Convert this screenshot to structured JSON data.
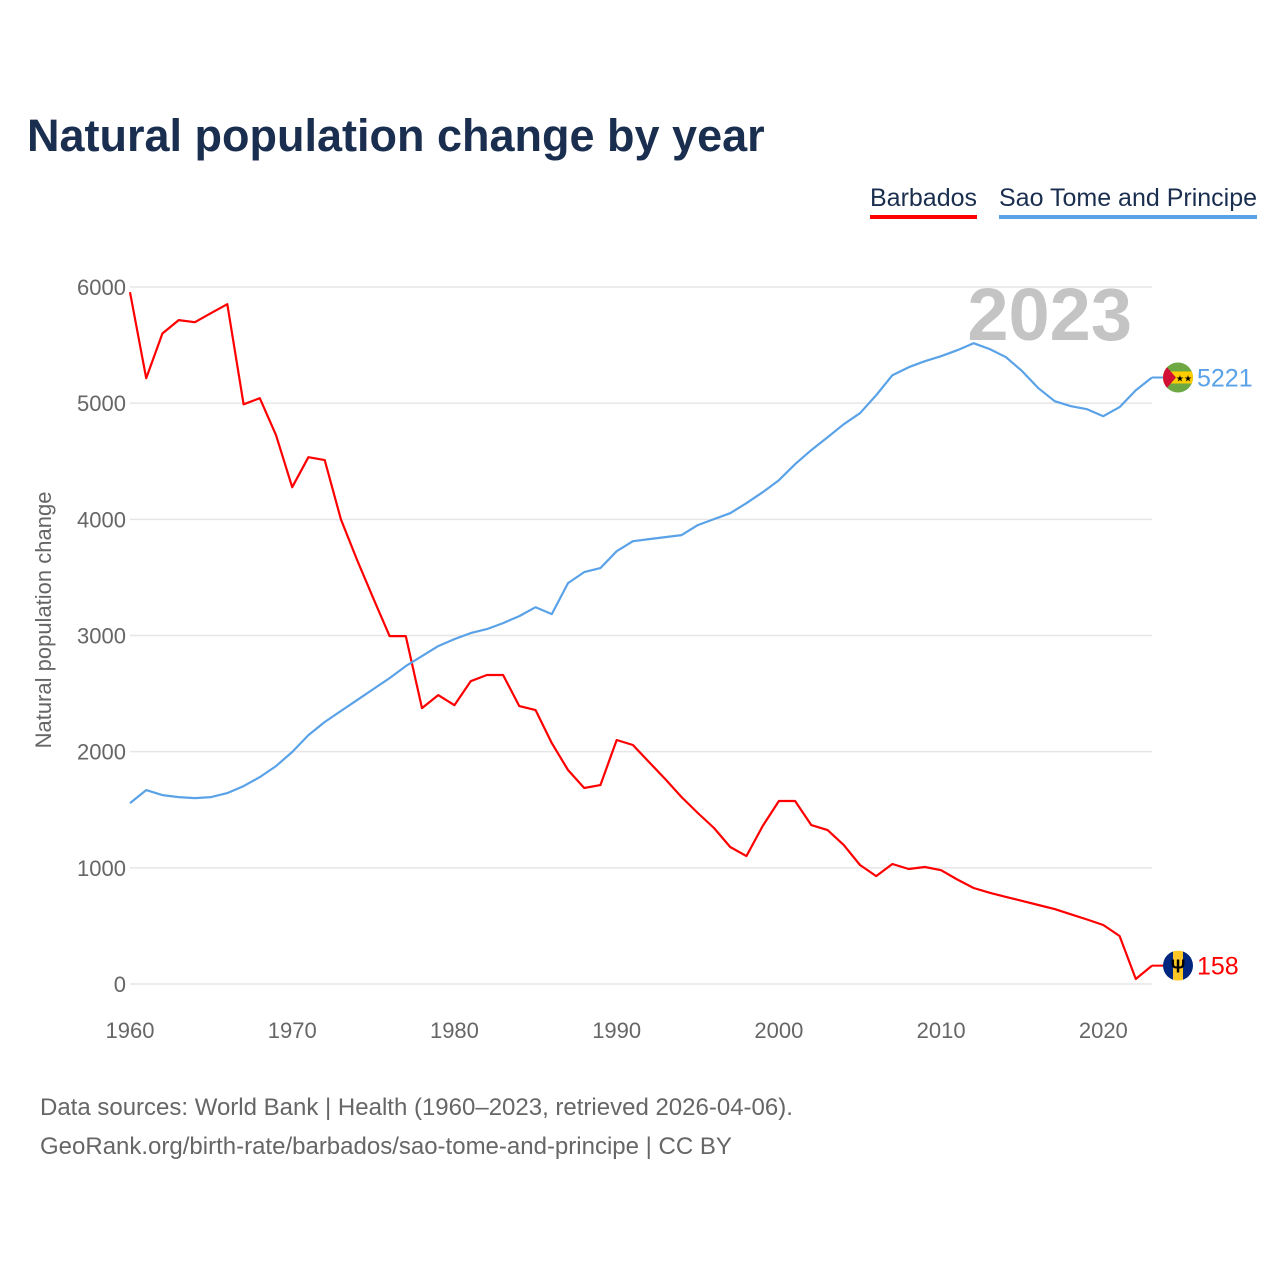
{
  "chart_data": {
    "type": "line",
    "title": "Natural population change by year",
    "ylabel": "Natural population change",
    "xlabel": "",
    "xlim": [
      1960,
      2023
    ],
    "ylim": [
      0,
      6000
    ],
    "yticks": [
      "0",
      "1000",
      "2000",
      "3000",
      "4000",
      "5000",
      "6000"
    ],
    "xticks": [
      "1960",
      "1970",
      "1980",
      "1990",
      "2000",
      "2010",
      "2020"
    ],
    "grid": true,
    "legend_position": "top-right",
    "highlight_year": "2023",
    "x": [
      1960,
      1961,
      1962,
      1963,
      1964,
      1965,
      1966,
      1967,
      1968,
      1969,
      1970,
      1971,
      1972,
      1973,
      1974,
      1975,
      1976,
      1977,
      1978,
      1979,
      1980,
      1981,
      1982,
      1983,
      1984,
      1985,
      1986,
      1987,
      1988,
      1989,
      1990,
      1991,
      1992,
      1993,
      1994,
      1995,
      1996,
      1997,
      1998,
      1999,
      2000,
      2001,
      2002,
      2003,
      2004,
      2005,
      2006,
      2007,
      2008,
      2009,
      2010,
      2011,
      2012,
      2013,
      2014,
      2015,
      2016,
      2017,
      2018,
      2019,
      2020,
      2021,
      2022,
      2023
    ],
    "series": [
      {
        "name": "Barbados",
        "color": "#ff0000",
        "end_label": "158",
        "flag": "barbados-flag",
        "values": [
          5955,
          5215,
          5600,
          5715,
          5697,
          5775,
          5852,
          4990,
          5043,
          4725,
          4277,
          4535,
          4510,
          4000,
          3650,
          3320,
          2995,
          2995,
          2375,
          2487,
          2400,
          2607,
          2660,
          2660,
          2392,
          2358,
          2074,
          1842,
          1687,
          1712,
          2100,
          2057,
          1910,
          1764,
          1609,
          1472,
          1343,
          1179,
          1101,
          1360,
          1575,
          1575,
          1368,
          1325,
          1196,
          1024,
          929,
          1033,
          990,
          1007,
          980,
          900,
          826,
          785,
          750,
          715,
          680,
          645,
          600,
          555,
          508,
          413,
          43,
          158
        ]
      },
      {
        "name": "Sao Tome and Principe",
        "color": "#5aa2e8",
        "end_label": "5221",
        "flag": "sao-tome-flag",
        "values": [
          1557,
          1669,
          1626,
          1609,
          1600,
          1609,
          1643,
          1704,
          1781,
          1876,
          1997,
          2143,
          2255,
          2350,
          2444,
          2539,
          2633,
          2737,
          2823,
          2909,
          2969,
          3021,
          3055,
          3107,
          3167,
          3244,
          3184,
          3451,
          3546,
          3580,
          3726,
          3812,
          3830,
          3847,
          3864,
          3950,
          4002,
          4053,
          4139,
          4234,
          4337,
          4475,
          4596,
          4707,
          4819,
          4914,
          5069,
          5241,
          5310,
          5361,
          5404,
          5456,
          5516,
          5465,
          5396,
          5275,
          5129,
          5017,
          4974,
          4948,
          4888,
          4966,
          5112,
          5221
        ]
      }
    ]
  },
  "footer": {
    "line1": "Data sources: World Bank | Health (1960–2023, retrieved 2026-04-06).",
    "line2": "GeoRank.org/birth-rate/barbados/sao-tome-and-principe | CC BY"
  }
}
